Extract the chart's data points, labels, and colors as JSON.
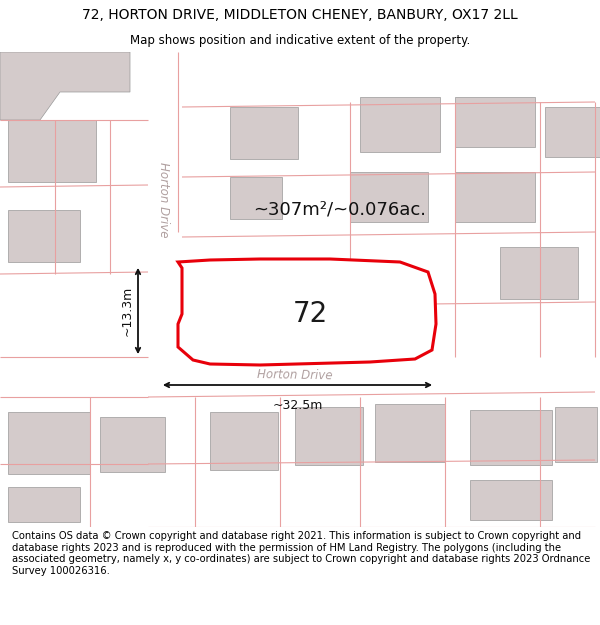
{
  "title": "72, HORTON DRIVE, MIDDLETON CHENEY, BANBURY, OX17 2LL",
  "subtitle": "Map shows position and indicative extent of the property.",
  "footer": "Contains OS data © Crown copyright and database right 2021. This information is subject to Crown copyright and database rights 2023 and is reproduced with the permission of HM Land Registry. The polygons (including the associated geometry, namely x, y co-ordinates) are subject to Crown copyright and database rights 2023 Ordnance Survey 100026316.",
  "area_text": "~307m²/~0.076ac.",
  "number_label": "72",
  "width_label": "~32.5m",
  "height_label": "~13.3m",
  "road_label_h": "Horton Drive",
  "road_label_v": "Horton Drive",
  "bg_color": "#ffffff",
  "map_bg": "#ede8e8",
  "building_color": "#d4cbcb",
  "highlight_color": "#e8000a",
  "highlight_fill": "#ffffff",
  "pink_line_color": "#e8a0a0",
  "title_fontsize": 10,
  "subtitle_fontsize": 8.5,
  "footer_fontsize": 7.2,
  "area_fontsize": 13,
  "number_fontsize": 20,
  "measure_fontsize": 9,
  "road_fontsize": 8.5
}
